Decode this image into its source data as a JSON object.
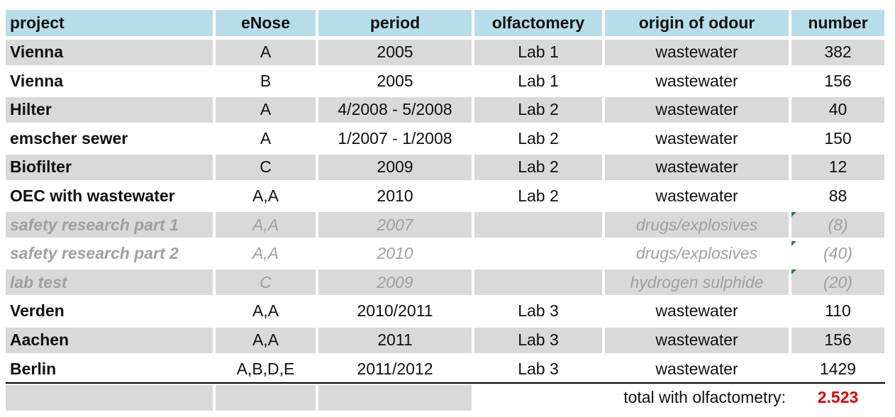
{
  "table": {
    "header": [
      "project",
      "eNose",
      "period",
      "olfactomery",
      "origin of odour",
      "number"
    ],
    "rows": [
      {
        "project": "Vienna",
        "eNose": "A",
        "period": "2005",
        "olfactometry": "Lab 1",
        "origin": "wastewater",
        "number": 382
      },
      {
        "project": "Vienna",
        "eNose": "B",
        "period": "2005",
        "olfactometry": "Lab 1",
        "origin": "wastewater",
        "number": 156
      },
      {
        "project": "Hilter",
        "eNose": "A",
        "period": "4/2008 - 5/2008",
        "olfactometry": "Lab 2",
        "origin": "wastewater",
        "number": 40
      },
      {
        "project": "emscher sewer",
        "eNose": "A",
        "period": "1/2007 - 1/2008",
        "olfactometry": "Lab 2",
        "origin": "wastewater",
        "number": 150
      },
      {
        "project": "Biofilter",
        "eNose": "C",
        "period": "2009",
        "olfactometry": "Lab 2",
        "origin": "wastewater",
        "number": 12
      },
      {
        "project": "OEC with wastewater",
        "eNose": "A,A",
        "period": "2010",
        "olfactometry": "Lab 2",
        "origin": "wastewater",
        "number": 88
      },
      {
        "project": "safety research part 1",
        "eNose": "A,A",
        "period": "2007",
        "origin": "drugs/explosives",
        "number": "(8)"
      },
      {
        "project": "safety research part 2",
        "eNose": "A,A",
        "period": "2010",
        "origin": "drugs/explosives",
        "number": "(40)"
      },
      {
        "project": "lab test",
        "eNose": "C",
        "period": "2009",
        "origin": "hydrogen sulphide",
        "number": "(20)"
      },
      {
        "project": "Verden",
        "eNose": "A,A",
        "period": "2010/2011",
        "olfactometry": "Lab 3",
        "origin": "wastewater",
        "number": 110
      },
      {
        "project": "Aachen",
        "eNose": "A,A",
        "period": "2011",
        "olfactometry": "Lab 3",
        "origin": "wastewater",
        "number": 156
      },
      {
        "project": "Berlin",
        "eNose": "A,B,D,E",
        "period": "2011/2012",
        "olfactometry": "Lab 3",
        "origin": "wastewater",
        "number": 1429
      }
    ],
    "total": {
      "label": "total with olfactometry:",
      "value": "2.523"
    }
  }
}
